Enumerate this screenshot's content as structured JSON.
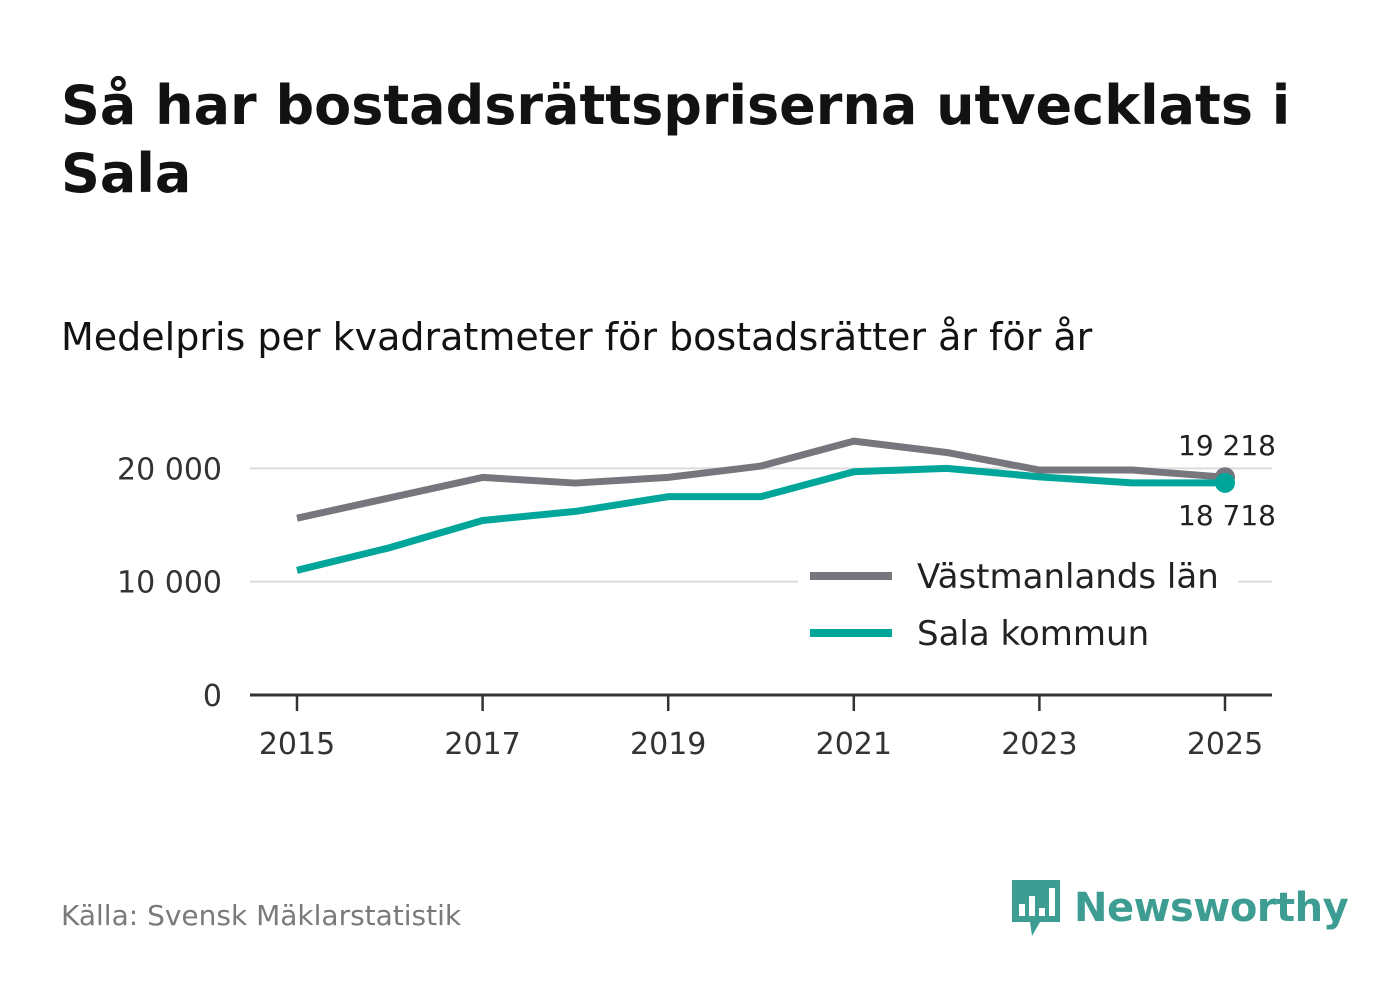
{
  "title": "Så har bostadsrättspriserna utvecklats i Sala",
  "subtitle": "Medelpris per kvadratmeter för bostadsrätter år för år",
  "source": "Källa: Svensk Mäklarstatistik",
  "brand": {
    "name": "Newsworthy",
    "color": "#3e9d93",
    "logo_icon": "newsworthy-chart-bubble-icon"
  },
  "chart_data": {
    "type": "line",
    "x": [
      2015,
      2016,
      2017,
      2018,
      2019,
      2020,
      2021,
      2022,
      2023,
      2024,
      2025
    ],
    "x_ticks": [
      "2015",
      "2017",
      "2019",
      "2021",
      "2023",
      "2025"
    ],
    "y_ticks": [
      "0",
      "10 000",
      "20 000"
    ],
    "y_tick_values": [
      0,
      10000,
      20000
    ],
    "ylim": [
      0,
      22500
    ],
    "grid": true,
    "legend_position": "bottom-right",
    "series": [
      {
        "name": "Västmanlands län",
        "color": "#77767c",
        "values": [
          15600,
          17400,
          19200,
          18700,
          19200,
          20200,
          22400,
          21400,
          19850,
          19850,
          19218
        ],
        "end_label": "19 218"
      },
      {
        "name": "Sala kommun",
        "color": "#00a69a",
        "values": [
          11000,
          13000,
          15400,
          16200,
          17500,
          17500,
          19700,
          20000,
          19250,
          18718,
          18718
        ],
        "end_label": "18 718"
      }
    ]
  }
}
